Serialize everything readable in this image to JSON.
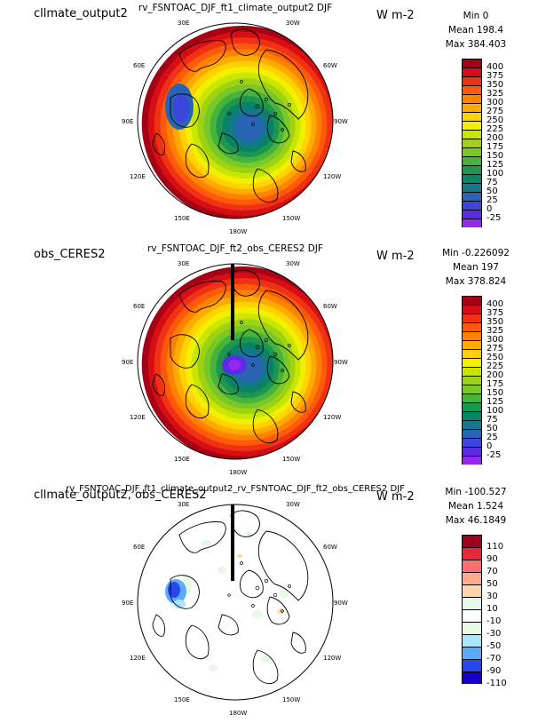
{
  "panels": [
    {
      "left_title": "cllmate_output2",
      "center_title": "rv_FSNTOAC_DJF_ft1_climate_output2  DJF",
      "units": "W m-2",
      "stats": [
        "Min 0",
        "Mean 198.4",
        "Max 384.403"
      ],
      "kind": "field"
    },
    {
      "left_title": "obs_CERES2",
      "center_title": "rv_FSNTOAC_DJF_ft2_obs_CERES2  DJF",
      "units": "W m-2",
      "stats": [
        "Min -0.226092",
        "Mean 197",
        "Max 378.824"
      ],
      "kind": "field"
    },
    {
      "left_title": "cllmate_output2, obs_CERES2",
      "center_title": "rv_FSNTOAC_DJF_ft1_climate_output2_rv_FSNTOAC_DJF_ft2_obs_CERES2  DJF",
      "units": "W m-2",
      "stats": [
        "Min -100.527",
        "Mean 1.524",
        "Max 46.1849"
      ],
      "kind": "diff"
    }
  ],
  "longitude_labels": {
    "top_left": "30E",
    "top_right": "30W",
    "upper_left": "60E",
    "upper_right": "60W",
    "left": "90E",
    "right": "90W",
    "lower_left": "120E",
    "lower_right": "120W",
    "bottom_left": "150E",
    "bottom_right": "150W",
    "bottom": "180W"
  },
  "field_colorbar": {
    "labels": [
      "400",
      "375",
      "350",
      "325",
      "300",
      "275",
      "250",
      "225",
      "200",
      "175",
      "150",
      "125",
      "100",
      "75",
      "50",
      "25",
      "0",
      "-25"
    ],
    "colors": [
      "#a50014",
      "#d70f14",
      "#f03214",
      "#ff5a0a",
      "#ff8200",
      "#ffaa00",
      "#ffd200",
      "#f0f000",
      "#c8e600",
      "#a0d214",
      "#78c828",
      "#46b43c",
      "#1e9650",
      "#0a8264",
      "#14788c",
      "#2864b4",
      "#3c46dc",
      "#5a2ce6",
      "#9628f0"
    ]
  },
  "diff_colorbar": {
    "labels": [
      "110",
      "90",
      "70",
      "50",
      "30",
      "10",
      "-10",
      "-30",
      "-50",
      "-70",
      "-90",
      "-110"
    ],
    "colors": [
      "#a0001e",
      "#e6283c",
      "#ff6e6e",
      "#ffaa8c",
      "#ffd7aa",
      "#e6fae6",
      "#ffffff",
      "#e6fae6",
      "#aae6ff",
      "#5aaaff",
      "#2846f0",
      "#1400c8"
    ]
  }
}
